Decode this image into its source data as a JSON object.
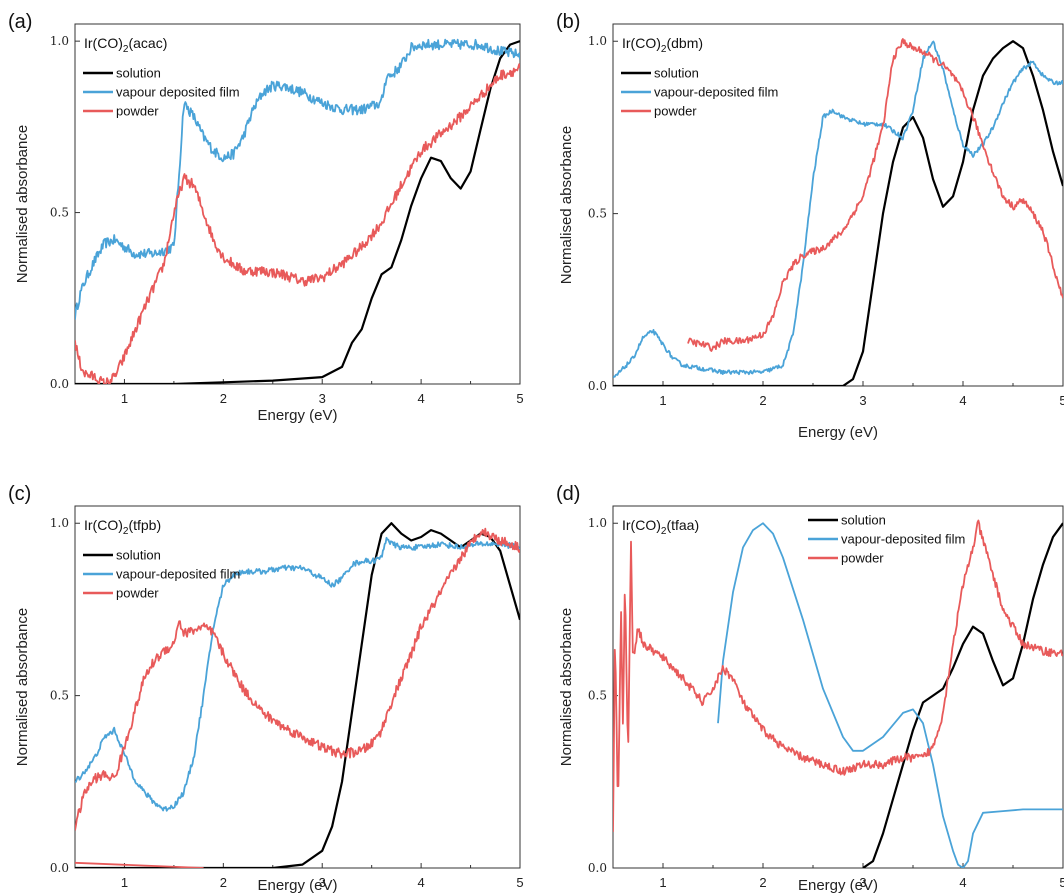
{
  "colors": {
    "solution": "#000000",
    "vapour": "#4aa3d8",
    "powder": "#e85a5a"
  },
  "chart_data": [
    {
      "type": "line",
      "panel_label": "(a)",
      "title": "Ir(CO)2(acac)",
      "title_parts": [
        "Ir(CO)",
        "2",
        "(acac)"
      ],
      "xlabel": "Energy (eV)",
      "ylabel": "Normalised absorbance",
      "xlim": [
        0.5,
        5.0
      ],
      "ylim": [
        0.0,
        1.05
      ],
      "xticks": [
        "1",
        "2",
        "3",
        "4",
        "5"
      ],
      "yticks": [
        "0.0",
        "0.5",
        "1.0"
      ],
      "legend_position": "top-left",
      "series": [
        {
          "name": "solution",
          "color_key": "solution",
          "x": [
            0.5,
            1.0,
            1.5,
            2.0,
            2.5,
            3.0,
            3.2,
            3.3,
            3.4,
            3.5,
            3.6,
            3.7,
            3.8,
            3.9,
            4.0,
            4.1,
            4.2,
            4.3,
            4.4,
            4.5,
            4.6,
            4.7,
            4.8,
            4.9,
            5.0
          ],
          "y": [
            0.0,
            0.0,
            0.0,
            0.005,
            0.01,
            0.02,
            0.05,
            0.12,
            0.16,
            0.25,
            0.32,
            0.34,
            0.42,
            0.52,
            0.6,
            0.66,
            0.65,
            0.6,
            0.57,
            0.62,
            0.74,
            0.86,
            0.95,
            0.99,
            1.0
          ]
        },
        {
          "name": "vapour deposited film",
          "color_key": "vapour",
          "noise": 0.015,
          "x": [
            0.5,
            0.55,
            0.6,
            0.7,
            0.8,
            0.9,
            1.0,
            1.1,
            1.2,
            1.3,
            1.4,
            1.5,
            1.55,
            1.6,
            1.7,
            1.8,
            1.9,
            2.0,
            2.1,
            2.2,
            2.3,
            2.4,
            2.5,
            2.6,
            2.8,
            3.0,
            3.2,
            3.4,
            3.6,
            3.65,
            3.7,
            3.8,
            3.9,
            4.0,
            4.2,
            4.4,
            4.6,
            4.8,
            5.0
          ],
          "y": [
            0.2,
            0.26,
            0.3,
            0.36,
            0.41,
            0.42,
            0.4,
            0.38,
            0.38,
            0.38,
            0.39,
            0.4,
            0.6,
            0.82,
            0.78,
            0.72,
            0.68,
            0.66,
            0.67,
            0.72,
            0.8,
            0.85,
            0.87,
            0.87,
            0.85,
            0.82,
            0.8,
            0.8,
            0.82,
            0.9,
            0.9,
            0.93,
            0.98,
            0.99,
            0.99,
            0.99,
            0.99,
            0.97,
            0.96
          ]
        },
        {
          "name": "powder",
          "color_key": "powder",
          "noise": 0.015,
          "x": [
            0.5,
            0.55,
            0.6,
            0.7,
            0.8,
            0.9,
            1.0,
            1.1,
            1.2,
            1.4,
            1.5,
            1.6,
            1.7,
            1.8,
            1.9,
            2.0,
            2.2,
            2.4,
            2.6,
            2.8,
            3.0,
            3.2,
            3.4,
            3.6,
            3.8,
            4.0,
            4.2,
            4.4,
            4.6,
            4.8,
            5.0
          ],
          "y": [
            0.12,
            0.06,
            0.03,
            0.02,
            0.0,
            0.02,
            0.08,
            0.15,
            0.22,
            0.35,
            0.5,
            0.6,
            0.58,
            0.5,
            0.42,
            0.37,
            0.33,
            0.33,
            0.32,
            0.3,
            0.31,
            0.35,
            0.4,
            0.47,
            0.58,
            0.68,
            0.73,
            0.78,
            0.84,
            0.9,
            0.92
          ]
        }
      ]
    },
    {
      "type": "line",
      "panel_label": "(b)",
      "title": "Ir(CO)2(dbm)",
      "title_parts": [
        "Ir(CO)",
        "2",
        "(dbm)"
      ],
      "xlabel": "Energy (eV)",
      "ylabel": "Normalised absorbance",
      "xlim": [
        0.5,
        5.0
      ],
      "ylim": [
        0.0,
        1.05
      ],
      "xticks": [
        "1",
        "2",
        "3",
        "4",
        "5"
      ],
      "yticks": [
        "0.0",
        "0.5",
        "1.0"
      ],
      "legend_position": "top-left",
      "series": [
        {
          "name": "solution",
          "color_key": "solution",
          "x": [
            0.5,
            1.0,
            2.0,
            2.5,
            2.8,
            2.9,
            3.0,
            3.1,
            3.2,
            3.3,
            3.4,
            3.5,
            3.6,
            3.7,
            3.8,
            3.9,
            4.0,
            4.1,
            4.2,
            4.3,
            4.4,
            4.5,
            4.6,
            4.7,
            4.8,
            4.9,
            5.0
          ],
          "y": [
            0.0,
            0.0,
            0.0,
            0.0,
            0.0,
            0.02,
            0.1,
            0.3,
            0.5,
            0.65,
            0.75,
            0.78,
            0.72,
            0.6,
            0.52,
            0.55,
            0.65,
            0.8,
            0.9,
            0.95,
            0.98,
            1.0,
            0.98,
            0.9,
            0.8,
            0.68,
            0.58
          ]
        },
        {
          "name": "vapour-deposited film",
          "color_key": "vapour",
          "noise": 0.006,
          "x": [
            0.5,
            0.6,
            0.7,
            0.8,
            0.9,
            1.0,
            1.1,
            1.2,
            1.4,
            1.6,
            1.8,
            2.0,
            2.2,
            2.3,
            2.4,
            2.5,
            2.6,
            2.7,
            2.8,
            3.0,
            3.2,
            3.3,
            3.4,
            3.5,
            3.6,
            3.7,
            3.8,
            3.9,
            4.0,
            4.1,
            4.2,
            4.3,
            4.4,
            4.5,
            4.6,
            4.7,
            4.8,
            4.9,
            5.0
          ],
          "y": [
            0.02,
            0.05,
            0.08,
            0.14,
            0.16,
            0.12,
            0.08,
            0.06,
            0.05,
            0.04,
            0.04,
            0.04,
            0.06,
            0.15,
            0.35,
            0.6,
            0.78,
            0.8,
            0.78,
            0.76,
            0.76,
            0.74,
            0.72,
            0.8,
            0.95,
            1.0,
            0.92,
            0.8,
            0.7,
            0.67,
            0.7,
            0.75,
            0.82,
            0.88,
            0.92,
            0.94,
            0.9,
            0.88,
            0.88
          ]
        },
        {
          "name": "powder",
          "color_key": "powder",
          "noise": 0.01,
          "x": [
            1.25,
            1.4,
            1.5,
            1.6,
            1.8,
            2.0,
            2.1,
            2.2,
            2.3,
            2.4,
            2.5,
            2.6,
            2.8,
            3.0,
            3.2,
            3.3,
            3.4,
            3.5,
            3.6,
            3.7,
            3.8,
            3.9,
            4.0,
            4.1,
            4.2,
            4.3,
            4.4,
            4.5,
            4.6,
            4.7,
            4.8,
            4.9,
            5.0
          ],
          "y": [
            0.13,
            0.12,
            0.11,
            0.13,
            0.13,
            0.15,
            0.2,
            0.3,
            0.35,
            0.38,
            0.39,
            0.4,
            0.45,
            0.55,
            0.75,
            0.95,
            1.0,
            0.98,
            0.97,
            0.95,
            0.93,
            0.9,
            0.85,
            0.78,
            0.7,
            0.62,
            0.55,
            0.52,
            0.54,
            0.5,
            0.45,
            0.35,
            0.25
          ]
        }
      ]
    },
    {
      "type": "line",
      "panel_label": "(c)",
      "title": "Ir(CO)2(tfpb)",
      "title_parts": [
        "Ir(CO)",
        "2",
        "(tfpb)"
      ],
      "xlabel": "Energy (eV)",
      "ylabel": "Normalised absorbance",
      "xlim": [
        0.5,
        5.0
      ],
      "ylim": [
        0.0,
        1.05
      ],
      "xticks": [
        "1",
        "2",
        "3",
        "4",
        "5"
      ],
      "yticks": [
        "0.0",
        "0.5",
        "1.0"
      ],
      "legend_position": "top-left",
      "series": [
        {
          "name": "solution",
          "color_key": "solution",
          "x": [
            0.5,
            1.0,
            2.0,
            2.5,
            2.8,
            3.0,
            3.1,
            3.2,
            3.3,
            3.4,
            3.5,
            3.6,
            3.7,
            3.8,
            3.9,
            4.0,
            4.1,
            4.2,
            4.3,
            4.4,
            4.5,
            4.6,
            4.7,
            4.8,
            4.9,
            5.0
          ],
          "y": [
            0.0,
            0.0,
            0.0,
            0.0,
            0.01,
            0.05,
            0.12,
            0.25,
            0.45,
            0.65,
            0.85,
            0.97,
            1.0,
            0.97,
            0.95,
            0.96,
            0.98,
            0.97,
            0.95,
            0.93,
            0.95,
            0.97,
            0.96,
            0.92,
            0.82,
            0.72
          ]
        },
        {
          "name": "vapour-deposited film",
          "color_key": "vapour",
          "noise": 0.008,
          "x": [
            0.5,
            0.6,
            0.7,
            0.8,
            0.9,
            1.0,
            1.1,
            1.2,
            1.3,
            1.4,
            1.5,
            1.6,
            1.7,
            1.8,
            1.9,
            2.0,
            2.1,
            2.2,
            2.4,
            2.6,
            2.8,
            3.0,
            3.1,
            3.2,
            3.3,
            3.4,
            3.5,
            3.6,
            3.65,
            3.7,
            3.8,
            4.0,
            4.2,
            4.4,
            4.6,
            4.8,
            5.0
          ],
          "y": [
            0.25,
            0.28,
            0.32,
            0.38,
            0.4,
            0.33,
            0.26,
            0.22,
            0.19,
            0.17,
            0.18,
            0.22,
            0.32,
            0.5,
            0.7,
            0.82,
            0.85,
            0.86,
            0.86,
            0.87,
            0.87,
            0.84,
            0.82,
            0.84,
            0.88,
            0.89,
            0.89,
            0.9,
            0.96,
            0.94,
            0.93,
            0.93,
            0.94,
            0.93,
            0.94,
            0.94,
            0.93
          ]
        },
        {
          "name": "powder",
          "color_key": "powder",
          "noise": 0.014,
          "x": [
            0.5,
            0.6,
            0.7,
            0.8,
            0.9,
            1.0,
            1.1,
            1.2,
            1.3,
            1.4,
            1.5,
            1.55,
            1.6,
            1.7,
            1.8,
            1.9,
            2.0,
            2.2,
            2.4,
            2.6,
            2.8,
            3.0,
            3.2,
            3.4,
            3.5,
            3.6,
            3.7,
            3.8,
            3.9,
            4.0,
            4.2,
            4.4,
            4.6,
            4.8,
            5.0
          ],
          "y": [
            0.12,
            0.22,
            0.26,
            0.27,
            0.26,
            0.35,
            0.45,
            0.55,
            0.6,
            0.63,
            0.65,
            0.72,
            0.68,
            0.69,
            0.7,
            0.68,
            0.62,
            0.52,
            0.45,
            0.41,
            0.38,
            0.35,
            0.33,
            0.34,
            0.36,
            0.4,
            0.48,
            0.55,
            0.62,
            0.7,
            0.8,
            0.9,
            0.98,
            0.95,
            0.93
          ]
        },
        {
          "name": "",
          "color_key": "powder",
          "x": [
            0.5,
            1.8
          ],
          "y": [
            0.015,
            0.0
          ]
        }
      ]
    },
    {
      "type": "line",
      "panel_label": "(d)",
      "title": "Ir(CO)2(tfaa)",
      "title_parts": [
        "Ir(CO)",
        "2",
        "(tfaa)"
      ],
      "xlabel": "Energy (eV)",
      "ylabel": "Normalised absorbance",
      "xlim": [
        0.5,
        5.0
      ],
      "ylim": [
        0.0,
        1.05
      ],
      "xticks": [
        "1",
        "2",
        "3",
        "4",
        "5"
      ],
      "yticks": [
        "0.0",
        "0.5",
        "1.0"
      ],
      "legend_position": "top-right",
      "series": [
        {
          "name": "solution",
          "color_key": "solution",
          "x": [
            3.0,
            3.1,
            3.2,
            3.3,
            3.4,
            3.5,
            3.6,
            3.7,
            3.8,
            3.9,
            4.0,
            4.1,
            4.2,
            4.3,
            4.4,
            4.5,
            4.6,
            4.7,
            4.8,
            4.9,
            5.0
          ],
          "y": [
            0.0,
            0.02,
            0.1,
            0.2,
            0.3,
            0.4,
            0.48,
            0.5,
            0.52,
            0.58,
            0.65,
            0.7,
            0.68,
            0.6,
            0.53,
            0.55,
            0.65,
            0.78,
            0.88,
            0.96,
            1.0
          ]
        },
        {
          "name": "vapour-deposited film",
          "color_key": "vapour",
          "x": [
            1.55,
            1.6,
            1.7,
            1.8,
            1.9,
            2.0,
            2.1,
            2.2,
            2.4,
            2.6,
            2.8,
            2.9,
            3.0,
            3.2,
            3.4,
            3.5,
            3.6,
            3.7,
            3.8,
            3.9,
            3.95,
            4.0,
            4.05,
            4.1,
            4.2,
            4.4,
            4.6,
            4.8,
            5.0
          ],
          "y": [
            0.42,
            0.6,
            0.8,
            0.93,
            0.98,
            1.0,
            0.97,
            0.9,
            0.72,
            0.52,
            0.38,
            0.34,
            0.34,
            0.38,
            0.45,
            0.46,
            0.42,
            0.3,
            0.15,
            0.05,
            0.01,
            0.0,
            0.02,
            0.1,
            0.16,
            0.165,
            0.17,
            0.17,
            0.17
          ]
        },
        {
          "name": "powder",
          "color_key": "powder",
          "noise": 0.012,
          "x": [
            0.5,
            0.52,
            0.55,
            0.58,
            0.6,
            0.62,
            0.65,
            0.68,
            0.7,
            0.75,
            0.8,
            0.9,
            1.0,
            1.2,
            1.4,
            1.5,
            1.6,
            1.7,
            1.8,
            2.0,
            2.2,
            2.4,
            2.6,
            2.8,
            3.0,
            3.2,
            3.4,
            3.6,
            3.7,
            3.8,
            3.9,
            4.0,
            4.1,
            4.15,
            4.2,
            4.3,
            4.4,
            4.5,
            4.6,
            4.8,
            5.0
          ],
          "y": [
            0.1,
            0.7,
            0.15,
            0.75,
            0.4,
            0.85,
            0.3,
            0.95,
            0.6,
            0.7,
            0.65,
            0.63,
            0.61,
            0.55,
            0.48,
            0.52,
            0.58,
            0.55,
            0.48,
            0.4,
            0.35,
            0.32,
            0.3,
            0.28,
            0.3,
            0.3,
            0.32,
            0.32,
            0.35,
            0.45,
            0.65,
            0.82,
            0.93,
            1.0,
            0.95,
            0.85,
            0.75,
            0.7,
            0.65,
            0.63,
            0.62
          ]
        }
      ]
    }
  ]
}
